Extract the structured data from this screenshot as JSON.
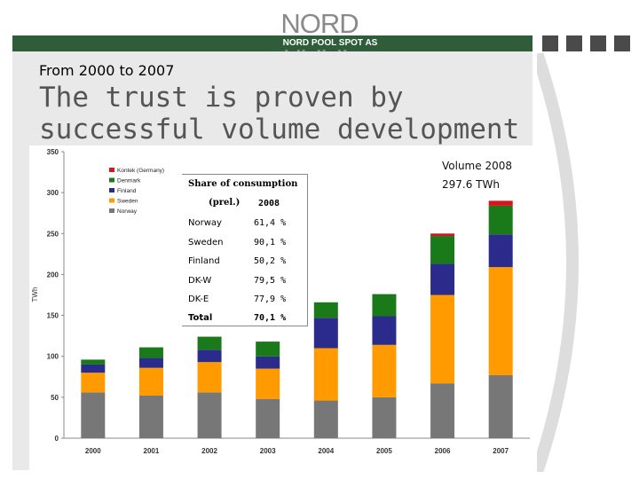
{
  "brand": {
    "logo_text": "NORD POOL",
    "logo_sub": "NORD POOL SPOT AS"
  },
  "slide": {
    "subtitle": "From 2000 to 2007",
    "title": "The trust is proven by successful volume development"
  },
  "volume_note": {
    "line1": "Volume 2008",
    "line2": "297.6 TWh"
  },
  "share_table": {
    "title": "Share of consumption",
    "col_label": "(prel.)",
    "col_year": "2008",
    "rows": [
      {
        "label": "Norway",
        "value": "61,4 %"
      },
      {
        "label": "Sweden",
        "value": "90,1 %"
      },
      {
        "label": "Finland",
        "value": "50,2 %"
      },
      {
        "label": "DK-W",
        "value": "79,5 %"
      },
      {
        "label": "DK-E",
        "value": "77,9 %"
      },
      {
        "label": "Total",
        "value": "70,1 %"
      }
    ]
  },
  "colors": {
    "norway": "#777777",
    "sweden": "#ff9a00",
    "finland": "#2b2b8c",
    "denmark": "#1a7a1a",
    "kontek": "#d8141c",
    "green_bar": "#2f5d3a"
  },
  "chart_data": {
    "type": "bar",
    "stacked": true,
    "ylabel": "TWh",
    "ylim": [
      0,
      350
    ],
    "yticks": [
      0,
      50,
      100,
      150,
      200,
      250,
      300,
      350
    ],
    "grid": false,
    "legend_position": "top-left",
    "categories": [
      "2000",
      "2001",
      "2002",
      "2003",
      "2004",
      "2005",
      "2006",
      "2007"
    ],
    "series": [
      {
        "name": "Norway",
        "values": [
          56,
          52,
          56,
          48,
          46,
          50,
          67,
          77
        ]
      },
      {
        "name": "Sweden",
        "values": [
          24,
          34,
          37,
          37,
          64,
          64,
          108,
          132
        ]
      },
      {
        "name": "Finland",
        "values": [
          10,
          12,
          15,
          15,
          37,
          35,
          38,
          40
        ]
      },
      {
        "name": "Denmark",
        "values": [
          6,
          13,
          16,
          18,
          19,
          27,
          34,
          35
        ]
      },
      {
        "name": "Kontek (Germany)",
        "values": [
          0,
          0,
          0,
          0,
          0,
          0,
          3,
          6
        ]
      }
    ],
    "legend_order": [
      "Kontek (Germany)",
      "Denmark",
      "Finland",
      "Sweden",
      "Norway"
    ]
  }
}
